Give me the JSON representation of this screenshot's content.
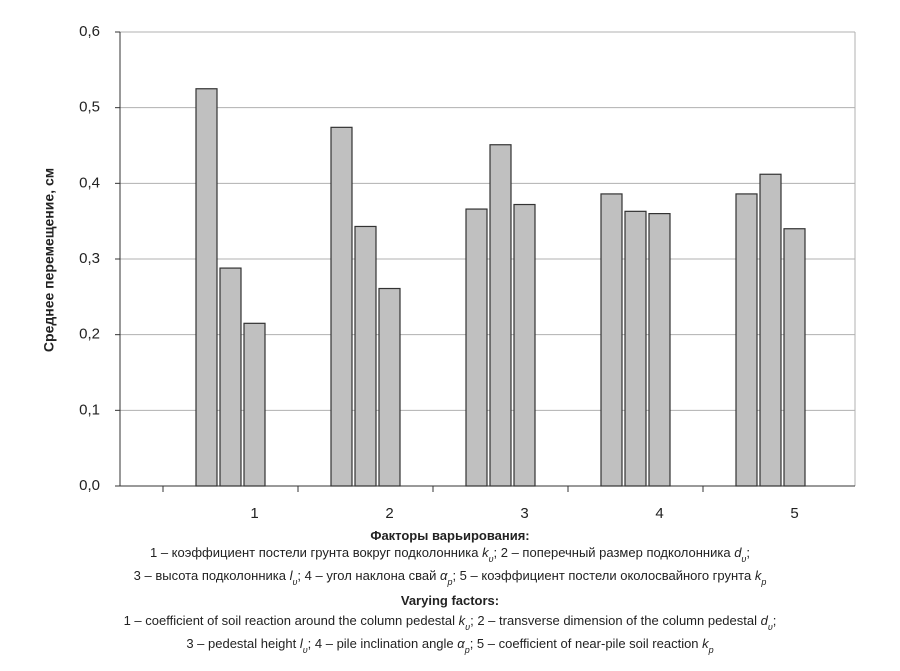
{
  "chart_data": {
    "type": "bar",
    "y_label": "Среднее перемещение, см",
    "categories": [
      "1",
      "2",
      "3",
      "4",
      "5"
    ],
    "series": [
      {
        "color": "#c0c0c0",
        "values": [
          0.525,
          0.474,
          0.366,
          0.386,
          0.386
        ]
      },
      {
        "color": "#c0c0c0",
        "values": [
          0.288,
          0.343,
          0.451,
          0.363,
          0.412
        ]
      },
      {
        "color": "#c0c0c0",
        "values": [
          0.215,
          0.261,
          0.372,
          0.36,
          0.34
        ]
      }
    ],
    "ylim": [
      0,
      0.6
    ],
    "yticks": [
      {
        "value": 0,
        "label": "0,0"
      },
      {
        "value": 0.1,
        "label": "0,1"
      },
      {
        "value": 0.2,
        "label": "0,2"
      },
      {
        "value": 0.3,
        "label": "0,3"
      },
      {
        "value": 0.4,
        "label": "0,4"
      },
      {
        "value": 0.5,
        "label": "0,5"
      },
      {
        "value": 0.6,
        "label": "0,6"
      }
    ],
    "grid": true,
    "caption": {
      "ru_title": "Факторы варьирования:",
      "ru_lines": [
        [
          "1 – коэффициент постели грунта вокруг подколонника ",
          "k",
          "υ",
          "; 2 – поперечный размер подколонника ",
          "d",
          "υ",
          ";"
        ],
        [
          "3 – высота подколонника ",
          "l",
          "υ",
          "; 4 – угол наклона свай ",
          "α",
          "p",
          "; 5 – коэффициент постели околосвайного грунта ",
          "k",
          "p"
        ]
      ],
      "en_title": "Varying factors:",
      "en_lines": [
        [
          "1 – coefficient of soil reaction around the column pedestal ",
          "k",
          "υ",
          "; 2 – transverse dimension of the column pedestal ",
          "d",
          "υ",
          ";"
        ],
        [
          "3 – pedestal height ",
          "l",
          "υ",
          "; 4 – pile inclination angle ",
          "α",
          "p",
          "; 5 – coefficient of near-pile soil reaction ",
          "k",
          "p"
        ]
      ]
    }
  }
}
